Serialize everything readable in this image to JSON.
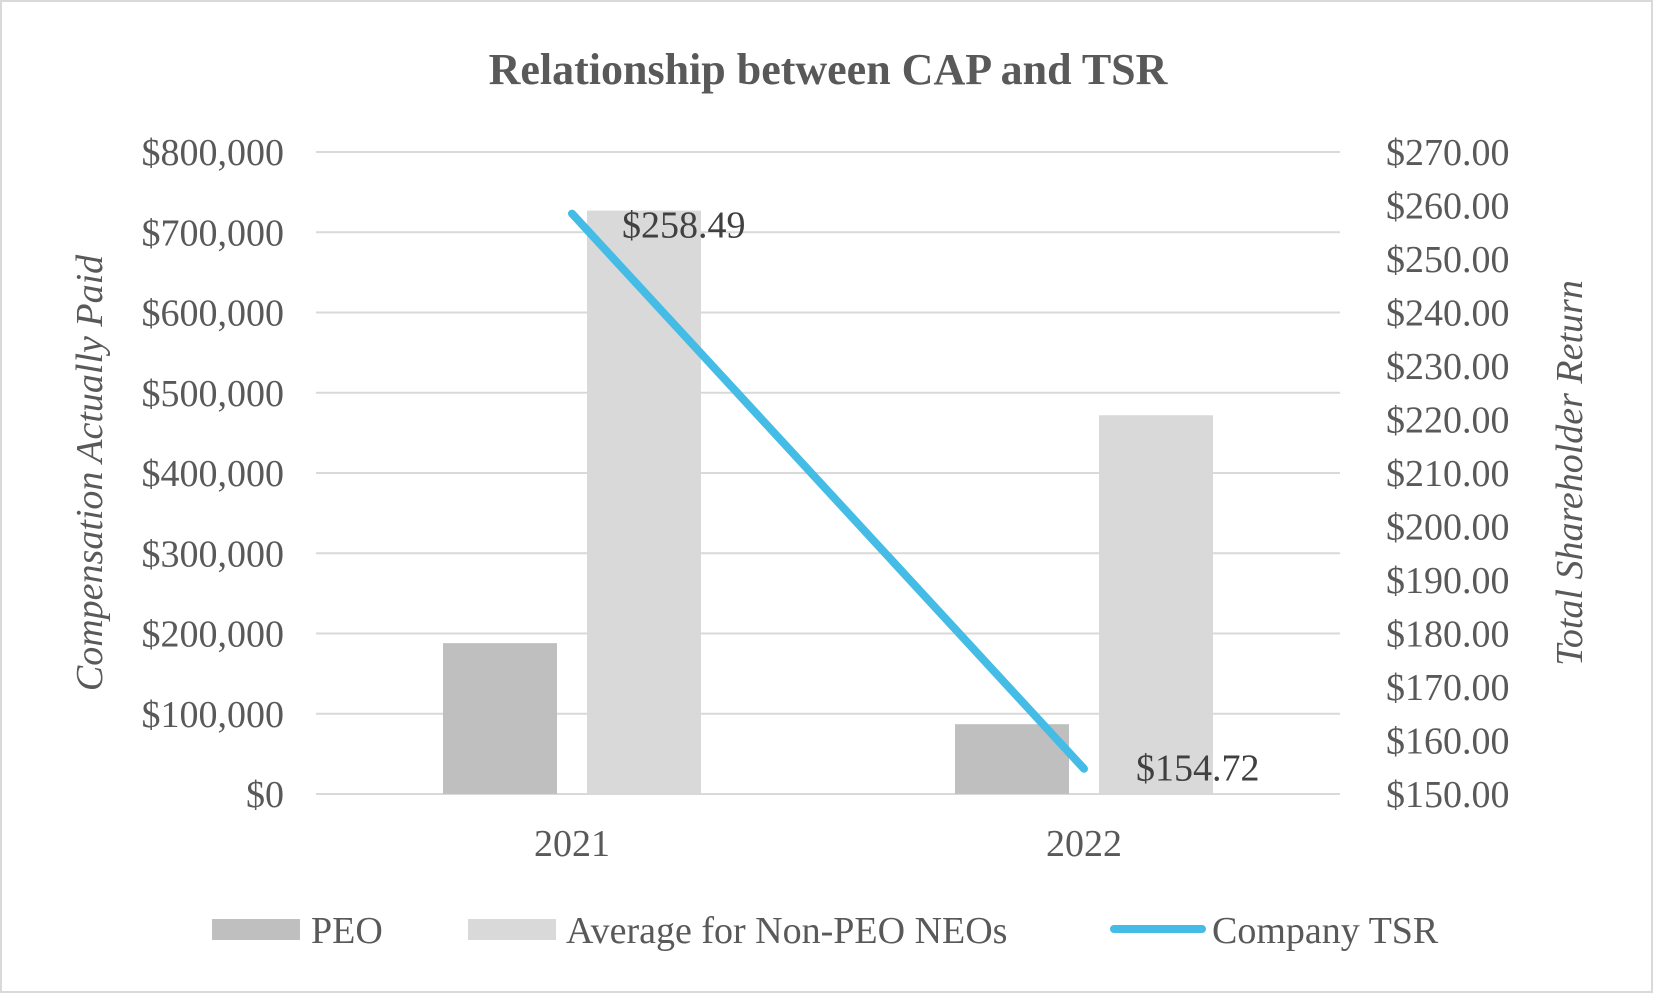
{
  "chart_data": {
    "type": "bar+line",
    "title": "Relationship between CAP and TSR",
    "categories": [
      "2021",
      "2022"
    ],
    "series": [
      {
        "name": "PEO",
        "type": "bar",
        "axis": "left",
        "color": "#bfbfbf",
        "values": [
          188000,
          87000
        ]
      },
      {
        "name": "Average for Non-PEO NEOs",
        "type": "bar",
        "axis": "left",
        "color": "#d9d9d9",
        "values": [
          727000,
          472000
        ]
      },
      {
        "name": "Company TSR",
        "type": "line",
        "axis": "right",
        "color": "#45bce5",
        "values": [
          258.49,
          154.72
        ],
        "data_labels": [
          "$258.49",
          "$154.72"
        ]
      }
    ],
    "ylabel_left": "Compensation Actually Paid",
    "ylabel_right": "Total Shareholder Return",
    "ylim_left": [
      0,
      800000
    ],
    "ylim_right": [
      150,
      270
    ],
    "yticks_left": [
      "$0",
      "$100,000",
      "$200,000",
      "$300,000",
      "$400,000",
      "$500,000",
      "$600,000",
      "$700,000",
      "$800,000"
    ],
    "yticks_right": [
      "$150.00",
      "$160.00",
      "$170.00",
      "$180.00",
      "$190.00",
      "$200.00",
      "$210.00",
      "$220.00",
      "$230.00",
      "$240.00",
      "$250.00",
      "$260.00",
      "$270.00"
    ],
    "grid": true,
    "legend_position": "bottom"
  }
}
